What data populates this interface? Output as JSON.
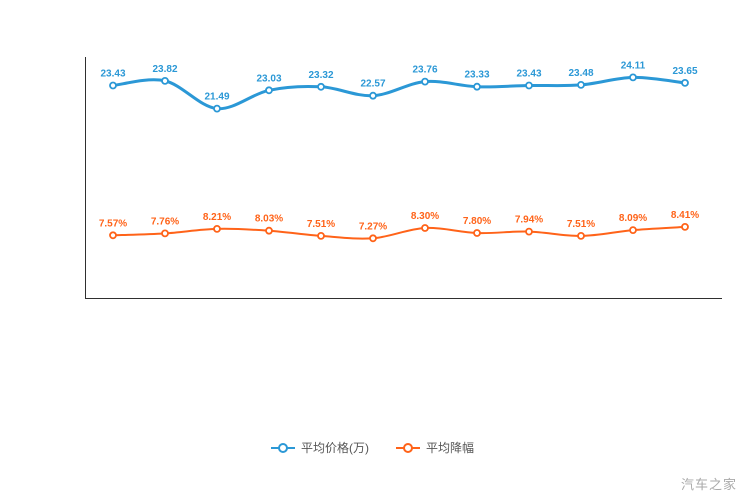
{
  "chart_data": {
    "type": "line",
    "x_tick_labels": [],
    "series": [
      {
        "name": "平均价格(万)",
        "color": "#2b98d6",
        "values": [
          23.43,
          23.82,
          21.49,
          23.03,
          23.32,
          22.57,
          23.76,
          23.33,
          23.43,
          23.48,
          24.11,
          23.65
        ],
        "label_suffix": "",
        "ylim": [
          21.2,
          24.4
        ]
      },
      {
        "name": "平均降幅",
        "color": "#ff6319",
        "values": [
          7.57,
          7.76,
          8.21,
          8.03,
          7.51,
          7.27,
          8.3,
          7.8,
          7.94,
          7.51,
          8.09,
          8.41
        ],
        "label_suffix": "%",
        "ylim": [
          7.0,
          8.7
        ]
      }
    ],
    "title": "",
    "xlabel": "",
    "ylabel": "",
    "grid": false,
    "legend_position": "bottom"
  },
  "colors": {
    "axis": "#2f2f2f",
    "background": "#ffffff",
    "legend_text": "#555555",
    "watermark_text": "#a9a9a9"
  },
  "watermark": "汽车之家"
}
